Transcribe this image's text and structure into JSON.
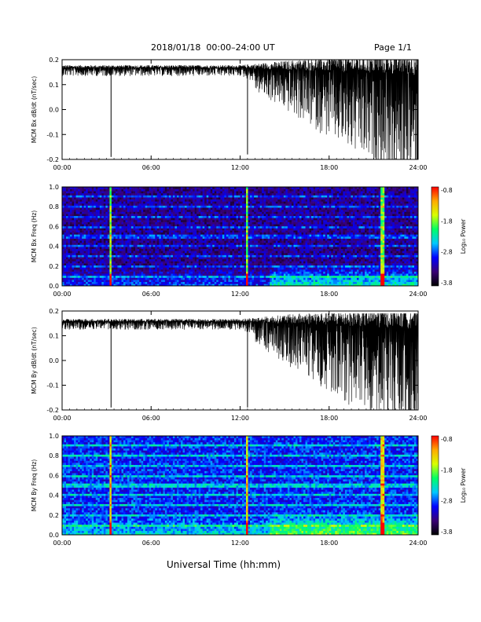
{
  "header": {
    "title": "2018/01/18  00:00–24:00 UT",
    "page": "Page 1/1"
  },
  "footer": {
    "xlabel": "Universal Time (hh:mm)"
  },
  "colorbar": {
    "label": "Log₁₀ Power",
    "ticks": [
      "-0.8",
      "-1.8",
      "-2.8",
      "-3.8"
    ],
    "colors": [
      "#000000",
      "#3a0075",
      "#0000ff",
      "#00c8ff",
      "#00ff66",
      "#d8ff00",
      "#ffaa00",
      "#ff0000"
    ]
  },
  "chart_data": [
    {
      "type": "line",
      "ylabel": "MCM Bx dB/dt (nT/sec)",
      "xlim": [
        0,
        24
      ],
      "ylim": [
        -0.2,
        0.2
      ],
      "yticks": [
        "0.2",
        "0.1",
        "0.0",
        "-0.1",
        "-0.2"
      ],
      "xticks": [
        "00:00",
        "06:00",
        "12:00",
        "18:00",
        "24:00"
      ],
      "series": [
        {
          "x": [
            0,
            1,
            2,
            3,
            3.3,
            3.35,
            4,
            6,
            8,
            10,
            12,
            12.5,
            12.55,
            13,
            14,
            15,
            16,
            16.5,
            17,
            17.5,
            18,
            18.5,
            19,
            20,
            21,
            21.5,
            21.6,
            22,
            23,
            24
          ],
          "y": [
            0.17,
            0.17,
            0.17,
            0.17,
            -0.19,
            0.17,
            0.17,
            0.17,
            0.17,
            0.17,
            0.17,
            -0.18,
            0.17,
            0.16,
            0.15,
            0.14,
            0.12,
            0.08,
            0.05,
            0.04,
            0.06,
            0.09,
            0.1,
            0.12,
            0.1,
            -0.15,
            0.08,
            0.12,
            0.12,
            0.13
          ]
        }
      ],
      "spikes": [
        3.3,
        12.5,
        16.5,
        17.7,
        21.6
      ]
    },
    {
      "type": "heatmap",
      "ylabel": "MCM Bx Freq (Hz)",
      "xlim": [
        0,
        24
      ],
      "ylim": [
        0,
        1.0
      ],
      "yticks": [
        "1.0",
        "0.8",
        "0.6",
        "0.4",
        "0.2",
        "0.0"
      ],
      "xticks": [
        "00:00",
        "06:00",
        "12:00",
        "18:00",
        "24:00"
      ],
      "zlim": [
        -3.8,
        -0.8
      ],
      "base_level": -3.3,
      "line_times": [
        3.3,
        12.5,
        21.6
      ],
      "harmonic_freqs": [
        0.1,
        0.2,
        0.3,
        0.4,
        0.5,
        0.6,
        0.7,
        0.8,
        0.9
      ]
    },
    {
      "type": "line",
      "ylabel": "MCM By dB/dt (nT/sec)",
      "xlim": [
        0,
        24
      ],
      "ylim": [
        -0.2,
        0.2
      ],
      "yticks": [
        "0.2",
        "0.1",
        "0.0",
        "-0.1",
        "-0.2"
      ],
      "xticks": [
        "00:00",
        "06:00",
        "12:00",
        "18:00",
        "24:00"
      ],
      "series": [
        {
          "x": [
            0,
            0.3,
            0.6,
            1,
            2,
            3,
            3.3,
            3.35,
            4,
            6,
            8,
            10,
            12,
            12.5,
            12.55,
            13,
            14,
            15,
            16,
            16.5,
            17,
            18,
            19,
            20,
            21,
            21.5,
            21.6,
            22,
            23,
            24
          ],
          "y": [
            0.18,
            0.12,
            0.16,
            0.16,
            0.16,
            0.16,
            -0.19,
            0.16,
            0.16,
            0.16,
            0.16,
            0.16,
            0.16,
            -0.19,
            0.16,
            0.15,
            0.14,
            0.13,
            0.1,
            0.02,
            0.06,
            0.05,
            0.07,
            0.08,
            0.06,
            -0.05,
            -0.16,
            0.06,
            0.05,
            0.06
          ]
        }
      ],
      "spikes": [
        3.3,
        12.5,
        16.5,
        21.6,
        22.2
      ]
    },
    {
      "type": "heatmap",
      "ylabel": "MCM By Freq (Hz)",
      "xlim": [
        0,
        24
      ],
      "ylim": [
        0,
        1.0
      ],
      "yticks": [
        "1.0",
        "0.8",
        "0.6",
        "0.4",
        "0.2",
        "0.0"
      ],
      "xticks": [
        "00:00",
        "06:00",
        "12:00",
        "18:00",
        "24:00"
      ],
      "zlim": [
        -3.8,
        -0.8
      ],
      "base_level": -2.9,
      "line_times": [
        3.3,
        12.5,
        21.6
      ],
      "harmonic_freqs": [
        0.1,
        0.2,
        0.3,
        0.4,
        0.5,
        0.6,
        0.7,
        0.8,
        0.9
      ]
    }
  ]
}
